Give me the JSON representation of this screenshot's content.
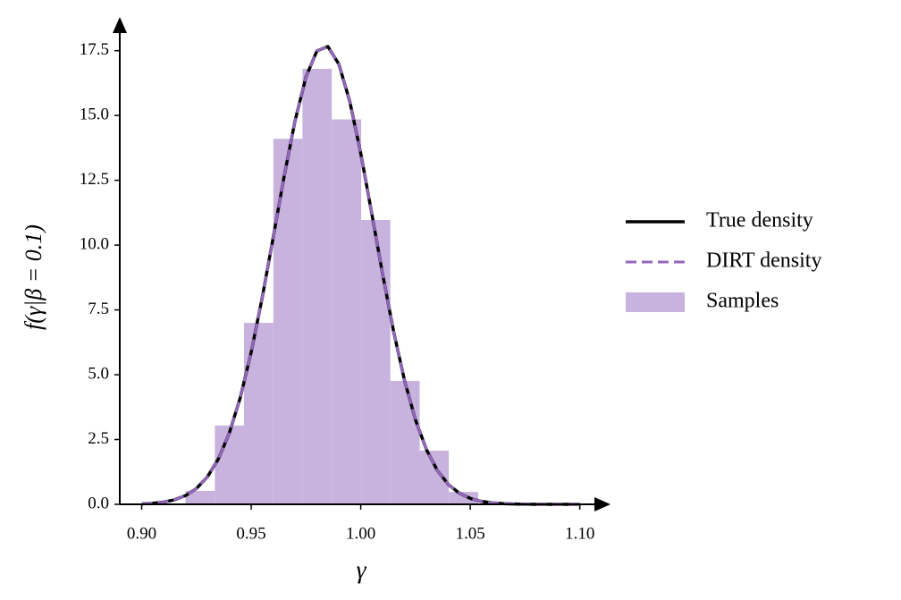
{
  "chart_data": {
    "type": "histogram",
    "xlabel": "γ",
    "ylabel": "f(γ|β = 0.1)",
    "hist": {
      "name": "Samples",
      "color": "#c8b3df",
      "bins": [
        0.92,
        0.9334,
        0.9467,
        0.9601,
        0.9734,
        0.9868,
        1.0002,
        1.0135,
        1.0269,
        1.0402,
        1.0536
      ],
      "values": [
        0.52,
        3.04,
        7.0,
        14.1,
        16.8,
        14.85,
        10.97,
        4.76,
        2.07,
        0.48
      ]
    },
    "x": [
      0.9,
      0.905,
      0.91,
      0.915,
      0.92,
      0.925,
      0.93,
      0.935,
      0.94,
      0.945,
      0.95,
      0.955,
      0.96,
      0.965,
      0.97,
      0.975,
      0.98,
      0.985,
      0.99,
      0.995,
      1.0,
      1.005,
      1.01,
      1.015,
      1.02,
      1.025,
      1.03,
      1.035,
      1.04,
      1.045,
      1.05,
      1.055,
      1.06,
      1.065,
      1.07,
      1.075,
      1.08,
      1.085,
      1.09,
      1.095,
      1.1
    ],
    "series": [
      {
        "name": "True density",
        "color": "#000000",
        "dashed": false,
        "values": [
          0.019,
          0.041,
          0.087,
          0.175,
          0.335,
          0.61,
          1.058,
          1.749,
          2.749,
          4.115,
          5.868,
          7.961,
          10.28,
          12.64,
          14.79,
          16.49,
          17.49,
          17.66,
          16.98,
          15.54,
          13.54,
          11.23,
          8.868,
          6.666,
          4.77,
          3.25,
          2.108,
          1.301,
          0.765,
          0.428,
          0.228,
          0.116,
          0.056,
          0.026,
          0.011,
          0.005,
          0.002,
          0.001,
          0,
          0,
          0
        ]
      },
      {
        "name": "DIRT density",
        "color": "#9467bd",
        "dashed": true,
        "values": [
          0.019,
          0.041,
          0.087,
          0.175,
          0.335,
          0.61,
          1.058,
          1.749,
          2.749,
          4.115,
          5.868,
          7.961,
          10.28,
          12.64,
          14.79,
          16.49,
          17.49,
          17.66,
          16.98,
          15.54,
          13.54,
          11.23,
          8.868,
          6.666,
          4.77,
          3.25,
          2.108,
          1.301,
          0.765,
          0.428,
          0.228,
          0.116,
          0.056,
          0.026,
          0.011,
          0.005,
          0.002,
          0.001,
          0,
          0,
          0
        ]
      }
    ],
    "xlim": [
      0.89,
      1.114
    ],
    "ylim": [
      0,
      18.8
    ],
    "xticks": [
      {
        "value": 0.9,
        "label": "0.90"
      },
      0.95,
      {
        "value": 1,
        "label": "1.00"
      },
      1.05,
      {
        "value": 1.1,
        "label": "1.10"
      }
    ],
    "yticks": [
      {
        "value": 0,
        "label": "0.0"
      },
      2.5,
      {
        "value": 5,
        "label": "5.0"
      },
      7.5,
      {
        "value": 10,
        "label": "10.0"
      },
      12.5,
      {
        "value": 15,
        "label": "15.0"
      },
      17.5
    ],
    "legend": "right"
  }
}
